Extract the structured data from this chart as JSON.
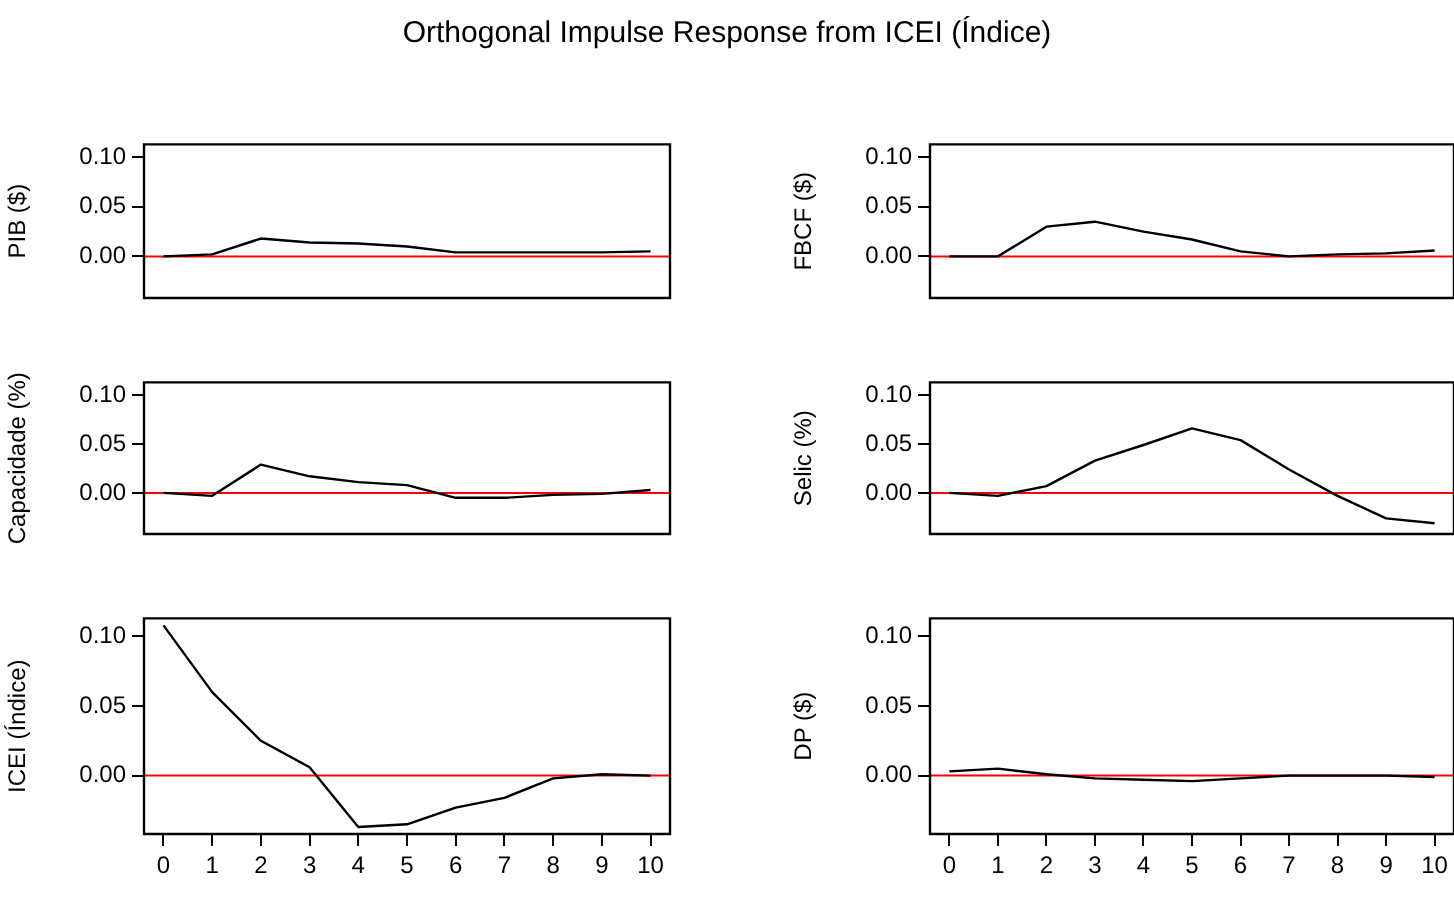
{
  "chart_data": [
    {
      "type": "line",
      "title": "Orthogonal Impulse Response from ICEI (Índice)",
      "ylabel": "PIB ($)",
      "tick_labels": "y",
      "x": [
        0,
        1,
        2,
        3,
        4,
        5,
        6,
        7,
        8,
        9,
        10
      ],
      "xlim": [
        -0.4,
        10.4
      ],
      "xticks": [
        0,
        1,
        2,
        3,
        4,
        5,
        6,
        7,
        8,
        9,
        10
      ],
      "ylim": [
        -0.042,
        0.113
      ],
      "yticks": [
        {
          "value": 0,
          "label": "0.00"
        },
        {
          "value": 0.05,
          "label": "0.05"
        },
        {
          "value": 0.1,
          "label": "0.10"
        }
      ],
      "ref_lines": [
        {
          "axis": "y",
          "value": 0,
          "color": "#ff0000"
        }
      ],
      "series": [
        {
          "color": "#000000",
          "values": [
            0,
            0.002,
            0.018,
            0.014,
            0.013,
            0.01,
            0.004,
            0.004,
            0.004,
            0.004,
            0.005
          ]
        }
      ]
    },
    {
      "type": "line",
      "ylabel": "FBCF ($)",
      "tick_labels": "y",
      "x": [
        0,
        1,
        2,
        3,
        4,
        5,
        6,
        7,
        8,
        9,
        10
      ],
      "xlim": [
        -0.4,
        10.4
      ],
      "xticks": [
        0,
        1,
        2,
        3,
        4,
        5,
        6,
        7,
        8,
        9,
        10
      ],
      "ylim": [
        -0.042,
        0.113
      ],
      "yticks": [
        {
          "value": 0,
          "label": "0.00"
        },
        {
          "value": 0.05,
          "label": "0.05"
        },
        {
          "value": 0.1,
          "label": "0.10"
        }
      ],
      "ref_lines": [
        {
          "axis": "y",
          "value": 0,
          "color": "#ff0000"
        }
      ],
      "series": [
        {
          "color": "#000000",
          "values": [
            0,
            0,
            0.03,
            0.035,
            0.025,
            0.017,
            0.005,
            0,
            0.002,
            0.003,
            0.006
          ]
        }
      ]
    },
    {
      "type": "line",
      "ylabel": "Capacidade (%)",
      "tick_labels": "y",
      "x": [
        0,
        1,
        2,
        3,
        4,
        5,
        6,
        7,
        8,
        9,
        10
      ],
      "xlim": [
        -0.4,
        10.4
      ],
      "xticks": [
        0,
        1,
        2,
        3,
        4,
        5,
        6,
        7,
        8,
        9,
        10
      ],
      "ylim": [
        -0.042,
        0.113
      ],
      "yticks": [
        {
          "value": 0,
          "label": "0.00"
        },
        {
          "value": 0.05,
          "label": "0.05"
        },
        {
          "value": 0.1,
          "label": "0.10"
        }
      ],
      "ref_lines": [
        {
          "axis": "y",
          "value": 0,
          "color": "#ff0000"
        }
      ],
      "series": [
        {
          "color": "#000000",
          "values": [
            0,
            -0.003,
            0.029,
            0.017,
            0.011,
            0.008,
            -0.005,
            -0.005,
            -0.002,
            -0.001,
            0.003
          ]
        }
      ]
    },
    {
      "type": "line",
      "ylabel": "Selic (%)",
      "tick_labels": "y",
      "x": [
        0,
        1,
        2,
        3,
        4,
        5,
        6,
        7,
        8,
        9,
        10
      ],
      "xlim": [
        -0.4,
        10.4
      ],
      "xticks": [
        0,
        1,
        2,
        3,
        4,
        5,
        6,
        7,
        8,
        9,
        10
      ],
      "ylim": [
        -0.042,
        0.113
      ],
      "yticks": [
        {
          "value": 0,
          "label": "0.00"
        },
        {
          "value": 0.05,
          "label": "0.05"
        },
        {
          "value": 0.1,
          "label": "0.10"
        }
      ],
      "ref_lines": [
        {
          "axis": "y",
          "value": 0,
          "color": "#ff0000"
        }
      ],
      "series": [
        {
          "color": "#000000",
          "values": [
            0,
            -0.003,
            0.007,
            0.033,
            0.049,
            0.066,
            0.054,
            0.024,
            -0.003,
            -0.026,
            -0.031
          ]
        }
      ]
    },
    {
      "type": "line",
      "ylabel": "ICEI (Índice)",
      "x": [
        0,
        1,
        2,
        3,
        4,
        5,
        6,
        7,
        8,
        9,
        10
      ],
      "xlim": [
        -0.4,
        10.4
      ],
      "xticks": [
        0,
        1,
        2,
        3,
        4,
        5,
        6,
        7,
        8,
        9,
        10
      ],
      "ylim": [
        -0.042,
        0.113
      ],
      "yticks": [
        {
          "value": 0,
          "label": "0.00"
        },
        {
          "value": 0.05,
          "label": "0.05"
        },
        {
          "value": 0.1,
          "label": "0.10"
        }
      ],
      "ref_lines": [
        {
          "axis": "y",
          "value": 0,
          "color": "#ff0000"
        }
      ],
      "series": [
        {
          "color": "#000000",
          "values": [
            0.108,
            0.06,
            0.025,
            0.006,
            -0.037,
            -0.035,
            -0.023,
            -0.016,
            -0.002,
            0.001,
            0
          ]
        }
      ]
    },
    {
      "type": "line",
      "ylabel": "DP ($)",
      "x": [
        0,
        1,
        2,
        3,
        4,
        5,
        6,
        7,
        8,
        9,
        10
      ],
      "xlim": [
        -0.4,
        10.4
      ],
      "xticks": [
        0,
        1,
        2,
        3,
        4,
        5,
        6,
        7,
        8,
        9,
        10
      ],
      "ylim": [
        -0.042,
        0.113
      ],
      "yticks": [
        {
          "value": 0,
          "label": "0.00"
        },
        {
          "value": 0.05,
          "label": "0.05"
        },
        {
          "value": 0.1,
          "label": "0.10"
        }
      ],
      "ref_lines": [
        {
          "axis": "y",
          "value": 0,
          "color": "#ff0000"
        }
      ],
      "series": [
        {
          "color": "#000000",
          "values": [
            0.003,
            0.005,
            0.001,
            -0.002,
            -0.003,
            -0.004,
            -0.002,
            0,
            0,
            0,
            -0.001
          ]
        }
      ]
    }
  ]
}
